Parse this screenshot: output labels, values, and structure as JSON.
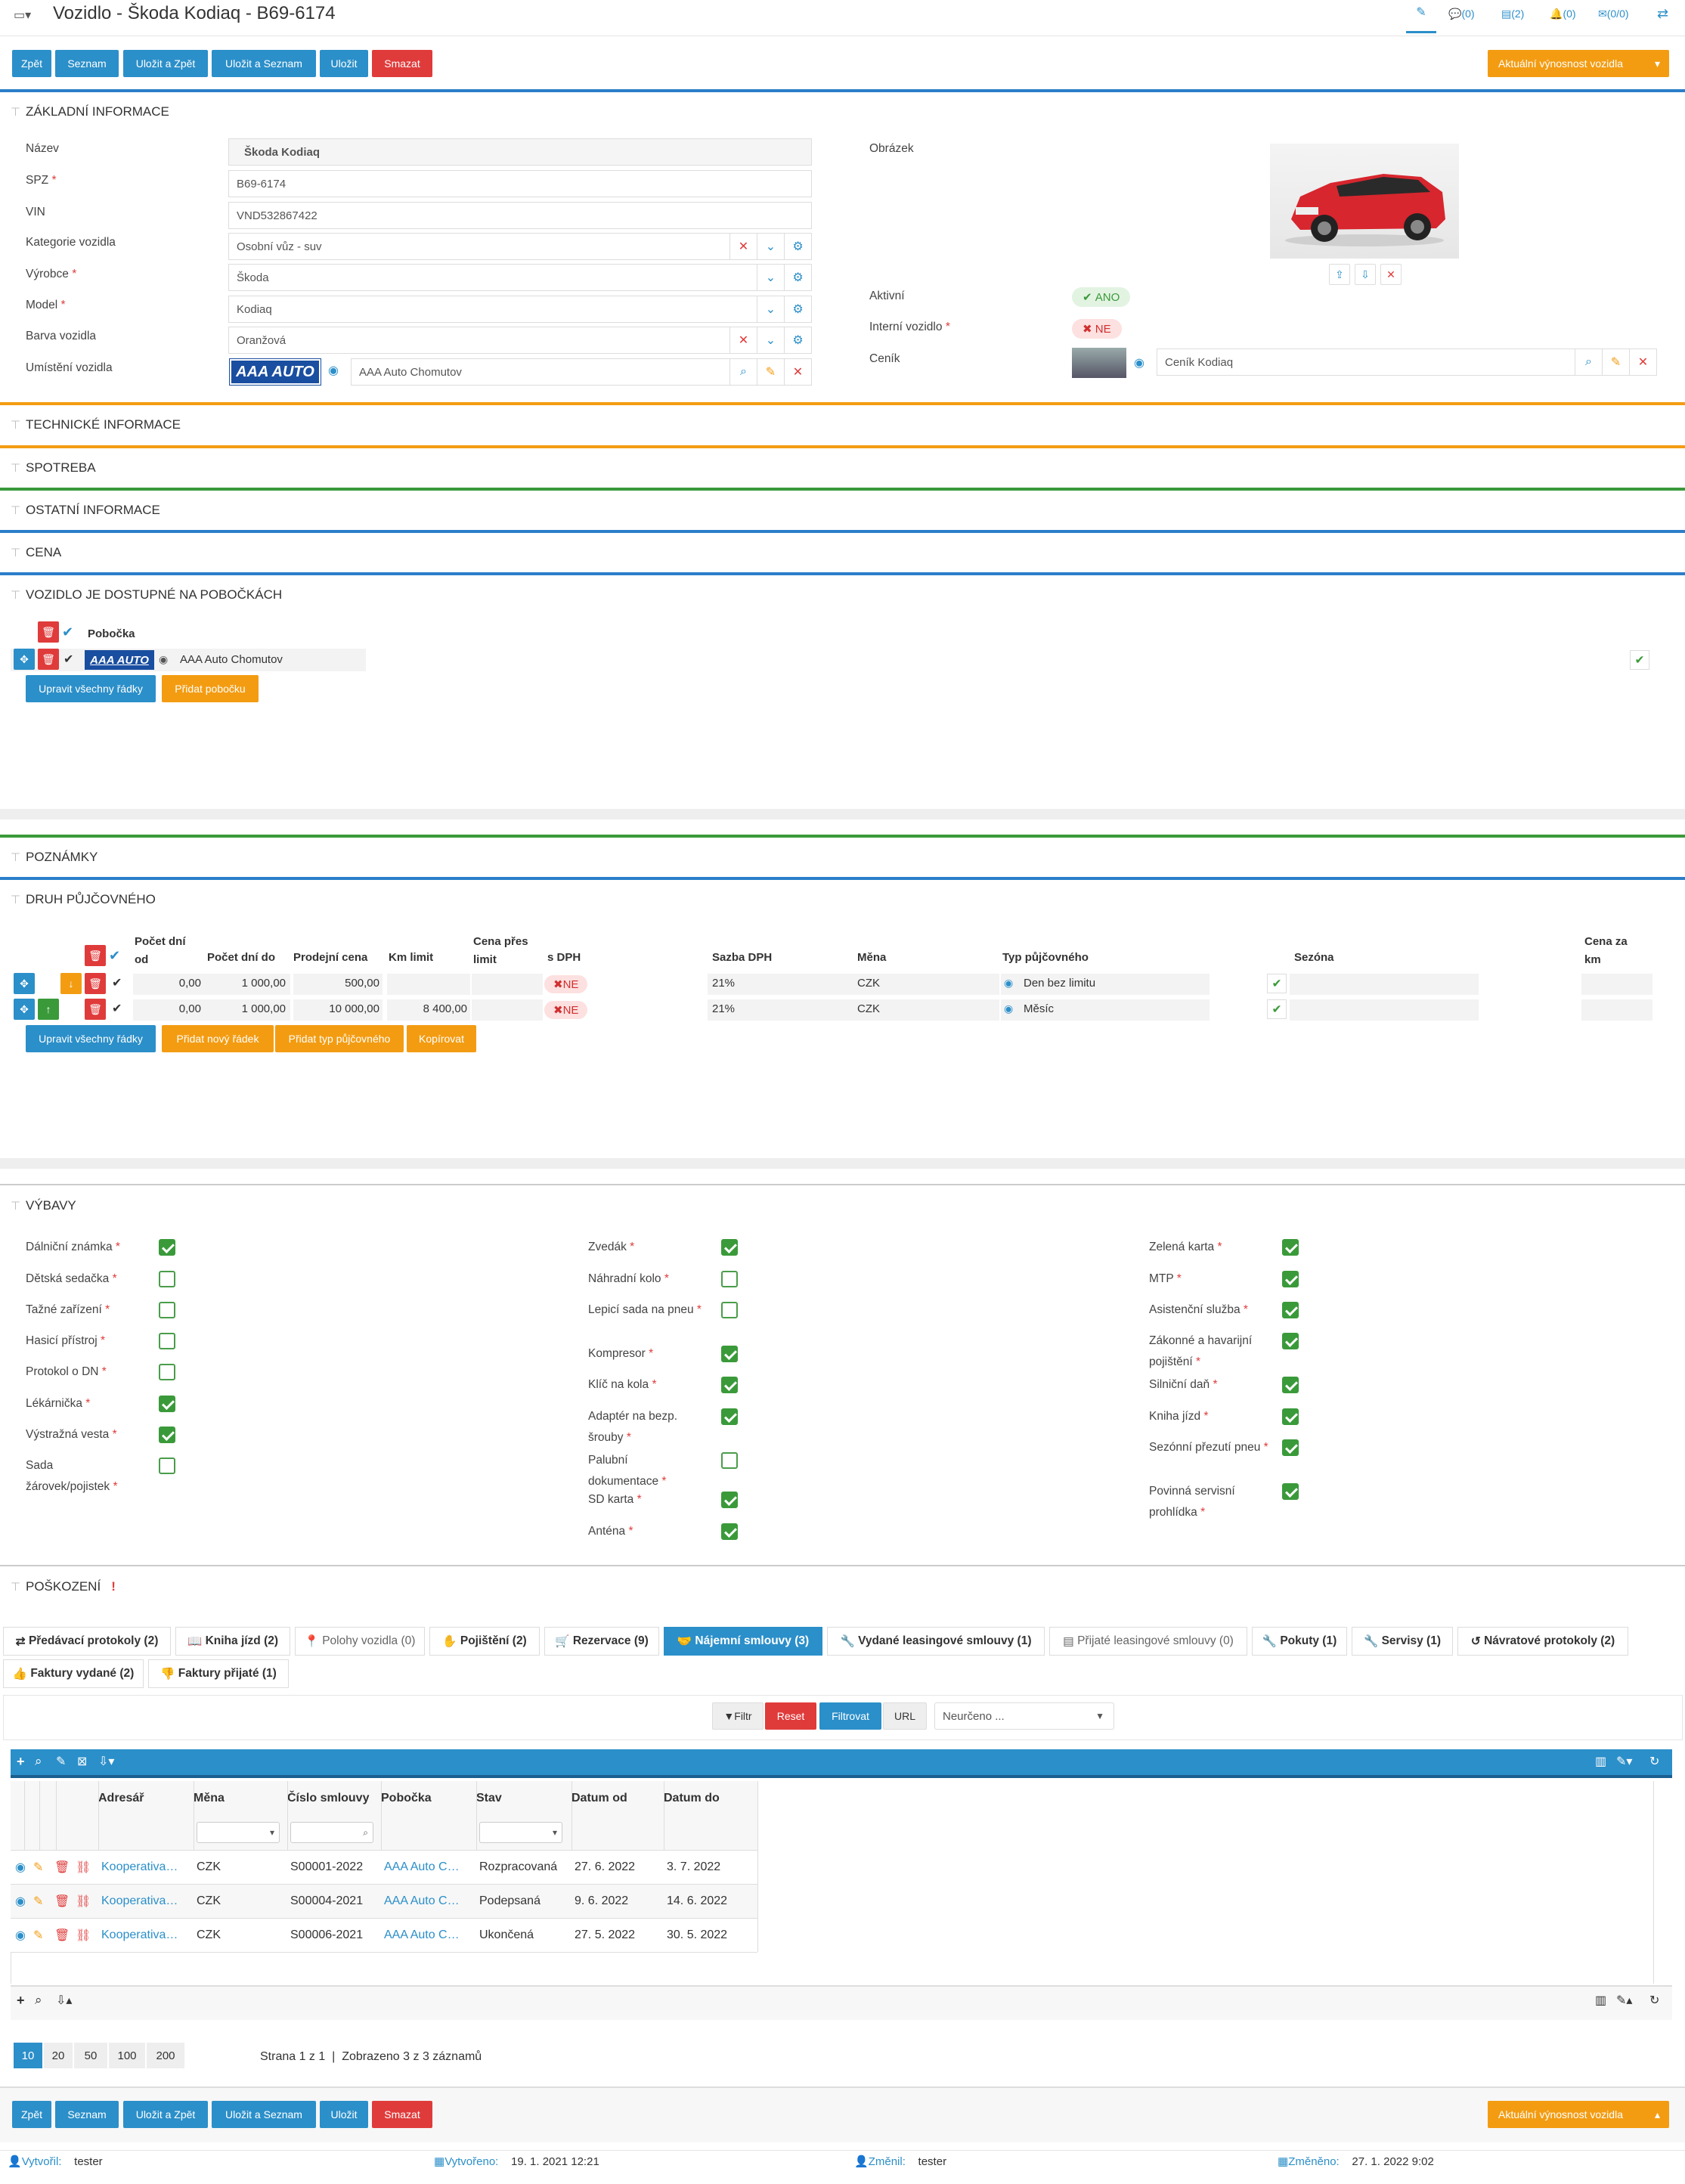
{
  "header": {
    "title": "Vozidlo - Škoda Kodiaq - B69-6174",
    "counts": [
      "(0)",
      "(2)",
      "(0)",
      "(0/0)"
    ]
  },
  "toolbar": {
    "back": "Zpět",
    "list": "Seznam",
    "save_back": "Uložit a Zpět",
    "save_list": "Uložit a Seznam",
    "save": "Uložit",
    "delete": "Smazat",
    "profitability": "Aktuální výnosnost vozidla"
  },
  "sections": {
    "basic": "ZÁKLADNÍ INFORMACE",
    "tech": "TECHNICKÉ INFORMACE",
    "consumption": "SPOTREBA",
    "other": "OSTATNÍ INFORMACE",
    "price": "CENA",
    "branches": "VOZIDLO JE DOSTUPNÉ NA POBOČKÁCH",
    "notes": "POZNÁMKY",
    "rental": "DRUH PŮJČOVNÉHO",
    "equipment": "VÝBAVY",
    "damage": "POŠKOZENÍ"
  },
  "basic": {
    "name_label": "Název",
    "name_value": "Škoda Kodiaq",
    "spz_label": "SPZ",
    "spz_value": "B69-6174",
    "vin_label": "VIN",
    "vin_value": "VND532867422",
    "category_label": "Kategorie vozidla",
    "category_value": "Osobní vůz - suv",
    "maker_label": "Výrobce",
    "maker_value": "Škoda",
    "model_label": "Model",
    "model_value": "Kodiaq",
    "color_label": "Barva vozidla",
    "color_value": "Oranžová",
    "location_label": "Umístění vozidla",
    "location_logo": "AAA AUTO",
    "location_value": "AAA Auto Chomutov",
    "image_label": "Obrázek",
    "active_label": "Aktivní",
    "active_value": "ANO",
    "internal_label": "Interní vozidlo",
    "internal_value": "NE",
    "pricelist_label": "Ceník",
    "pricelist_value": "Ceník Kodiaq"
  },
  "branches": {
    "header": "Pobočka",
    "logo": "AAA AUTO",
    "branch": "AAA Auto Chomutov",
    "edit_all": "Upravit všechny řádky",
    "add": "Přidat pobočku"
  },
  "rental": {
    "headers": [
      "Počet dní od",
      "Počet dní do",
      "Prodejní cena",
      "Km limit",
      "Cena přes limit",
      "s DPH",
      "Sazba DPH",
      "Měna",
      "Typ půjčovného",
      "Sezóna",
      "Cena za km"
    ],
    "rows": [
      {
        "from": "0,00",
        "to": "1 000,00",
        "price": "500,00",
        "km": "",
        "vat_incl": "NE",
        "vat": "21%",
        "cur": "CZK",
        "type": "Den bez limitu"
      },
      {
        "from": "0,00",
        "to": "1 000,00",
        "price": "10 000,00",
        "km": "8 400,00",
        "vat_incl": "NE",
        "vat": "21%",
        "cur": "CZK",
        "type": "Měsíc"
      }
    ],
    "edit_all": "Upravit všechny řádky",
    "add_row": "Přidat nový řádek",
    "add_type": "Přidat typ půjčovného",
    "copy": "Kopírovat"
  },
  "equipment": {
    "col1": [
      {
        "label": "Dálniční známka",
        "on": true
      },
      {
        "label": "Dětská sedačka",
        "on": false
      },
      {
        "label": "Tažné zařízení",
        "on": false
      },
      {
        "label": "Hasicí přístroj",
        "on": false
      },
      {
        "label": "Protokol o DN",
        "on": false
      },
      {
        "label": "Lékárnička",
        "on": true
      },
      {
        "label": "Výstražná vesta",
        "on": true
      },
      {
        "label": "Sada",
        "label2": "žárovek/pojistek",
        "on": false
      }
    ],
    "col2": [
      {
        "label": "Zvedák",
        "on": true
      },
      {
        "label": "Náhradní kolo",
        "on": false
      },
      {
        "label": "Lepicí sada na pneu",
        "on": false
      },
      {
        "label": "Kompresor",
        "on": true
      },
      {
        "label": "Klíč na kola",
        "on": true
      },
      {
        "label": "Adaptér na bezp.",
        "label2": "šrouby",
        "on": true
      },
      {
        "label": "Palubní",
        "label2": "dokumentace",
        "on": false
      },
      {
        "label": "SD karta",
        "on": true
      },
      {
        "label": "Anténa",
        "on": true
      }
    ],
    "col3": [
      {
        "label": "Zelená karta",
        "on": true
      },
      {
        "label": "MTP",
        "on": true
      },
      {
        "label": "Asistenční služba",
        "on": true
      },
      {
        "label": "Zákonné a havarijní",
        "label2": "pojištění",
        "on": true
      },
      {
        "label": "Silniční daň",
        "on": true
      },
      {
        "label": "Kniha jízd",
        "on": true
      },
      {
        "label": "Sezónní přezutí pneu",
        "on": true
      },
      {
        "label": "Povinná servisní",
        "label2": "prohlídka",
        "on": true
      }
    ]
  },
  "tabs": [
    "Předávací protokoly (2)",
    "Kniha jízd (2)",
    "Polohy vozidla (0)",
    "Pojištění (2)",
    "Rezervace (9)",
    "Nájemní smlouvy (3)",
    "Vydané leasingové smlouvy (1)",
    "Přijaté leasingové smlouvy (0)",
    "Pokuty (1)",
    "Servisy (1)",
    "Návratové protokoly (2)",
    "Faktury vydané (2)",
    "Faktury přijaté (1)"
  ],
  "filter": {
    "filter": "Filtr",
    "reset": "Reset",
    "apply": "Filtrovat",
    "url": "URL",
    "select": "Neurčeno ..."
  },
  "grid": {
    "headers": [
      "Adresář",
      "Měna",
      "Číslo smlouvy",
      "Pobočka",
      "Stav",
      "Datum od",
      "Datum do"
    ],
    "rows": [
      [
        "Kooperativa…",
        "CZK",
        "S00001-2022",
        "AAA Auto C…",
        "Rozpracovaná",
        "27. 6. 2022",
        "3. 7. 2022"
      ],
      [
        "Kooperativa…",
        "CZK",
        "S00004-2021",
        "AAA Auto C…",
        "Podepsaná",
        "9. 6. 2022",
        "14. 6. 2022"
      ],
      [
        "Kooperativa…",
        "CZK",
        "S00006-2021",
        "AAA Auto C…",
        "Ukončená",
        "27. 5. 2022",
        "30. 5. 2022"
      ]
    ],
    "pages": [
      "10",
      "20",
      "50",
      "100",
      "200"
    ],
    "info": "Strana 1 z 1  |  Zobrazeno 3 z 3 záznamů"
  },
  "footer": {
    "created_by_label": "Vytvořil:",
    "created_by": "tester",
    "created_label": "Vytvořeno:",
    "created": "19. 1. 2021 12:21",
    "changed_by_label": "Změnil:",
    "changed_by": "tester",
    "changed_label": "Změněno:",
    "changed": "27. 1. 2022 9:02"
  }
}
